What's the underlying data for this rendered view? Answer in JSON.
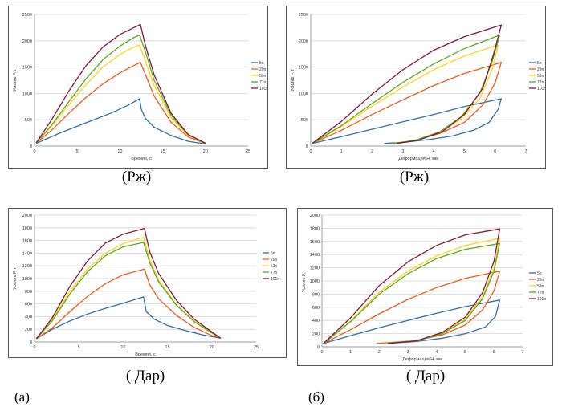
{
  "captions": [
    "(Рж)",
    "(Рж)",
    "( Дар)",
    "( Дар)"
  ],
  "panel_labels": [
    "(а)",
    "(б)"
  ],
  "colors": {
    "5n": "#2e6fa8",
    "29n": "#f05a1a",
    "53n": "#ffd21a",
    "77n": "#5ea820",
    "101n": "#7b1a3a"
  },
  "chart_data": [
    {
      "type": "line",
      "xlabel": "Время t, с",
      "ylabel": "Усилие F, г",
      "xlim": [
        0,
        25
      ],
      "ylim": [
        0,
        2500
      ],
      "xticks": [
        0,
        5,
        10,
        15,
        20,
        25
      ],
      "yticks": [
        0,
        500,
        1000,
        1500,
        2000,
        2500
      ],
      "legend": [
        "5n",
        "29n",
        "53n",
        "77n",
        "101n"
      ],
      "series": [
        {
          "name": "5n",
          "x": [
            0.2,
            3,
            6,
            9,
            11,
            12.3,
            12.5,
            13,
            14,
            16,
            18,
            20
          ],
          "y": [
            50,
            250,
            440,
            630,
            780,
            900,
            700,
            520,
            360,
            200,
            90,
            40
          ]
        },
        {
          "name": "29n",
          "x": [
            0.2,
            2,
            4,
            6,
            8,
            10,
            11.5,
            12.4,
            13,
            14,
            16,
            18,
            20
          ],
          "y": [
            60,
            300,
            620,
            920,
            1180,
            1390,
            1520,
            1590,
            1350,
            950,
            450,
            170,
            50
          ]
        },
        {
          "name": "53n",
          "x": [
            0.2,
            2,
            4,
            6,
            8,
            10,
            11.5,
            12.3,
            13,
            14,
            16,
            18,
            20
          ],
          "y": [
            60,
            380,
            780,
            1160,
            1500,
            1740,
            1870,
            1920,
            1600,
            1150,
            540,
            200,
            55
          ]
        },
        {
          "name": "77n",
          "x": [
            0.2,
            2,
            4,
            6,
            8,
            10,
            11.5,
            12.3,
            13,
            14,
            16,
            18,
            20
          ],
          "y": [
            60,
            400,
            840,
            1270,
            1640,
            1900,
            2050,
            2110,
            1780,
            1250,
            580,
            210,
            55
          ]
        },
        {
          "name": "101n",
          "x": [
            0.2,
            2,
            4,
            6,
            8,
            10,
            11.5,
            12.4,
            13,
            14,
            16,
            18,
            20
          ],
          "y": [
            60,
            500,
            1040,
            1520,
            1880,
            2120,
            2240,
            2310,
            1900,
            1350,
            620,
            220,
            55
          ]
        }
      ]
    },
    {
      "type": "line",
      "xlabel": "Деформация H, мм",
      "ylabel": "Усилие F, г",
      "xlim": [
        0,
        7
      ],
      "ylim": [
        0,
        2500
      ],
      "xticks": [
        0,
        1,
        2,
        3,
        4,
        5,
        6,
        7
      ],
      "yticks": [
        0,
        500,
        1000,
        1500,
        2000,
        2500
      ],
      "legend": [
        "5n",
        "29n",
        "53n",
        "77n",
        "101n"
      ],
      "series": [
        {
          "name": "5n",
          "x": [
            0.05,
            1,
            2,
            3,
            4,
            5,
            6.2,
            6.1,
            5.8,
            5.3,
            4.6,
            3.8,
            3.0,
            2.4
          ],
          "y": [
            50,
            180,
            320,
            460,
            600,
            750,
            900,
            700,
            450,
            300,
            190,
            120,
            70,
            50
          ]
        },
        {
          "name": "29n",
          "x": [
            0.05,
            1,
            2,
            3,
            4,
            5,
            6.2,
            6.0,
            5.6,
            5.0,
            4.2,
            3.4,
            2.7
          ],
          "y": [
            50,
            300,
            600,
            880,
            1150,
            1380,
            1590,
            1200,
            780,
            450,
            240,
            110,
            50
          ]
        },
        {
          "name": "53n",
          "x": [
            0.05,
            1,
            2,
            3,
            4,
            5,
            6.1,
            5.9,
            5.5,
            4.9,
            4.2,
            3.4,
            2.7
          ],
          "y": [
            50,
            370,
            760,
            1120,
            1450,
            1710,
            1920,
            1450,
            900,
            520,
            260,
            110,
            50
          ]
        },
        {
          "name": "77n",
          "x": [
            0.05,
            1,
            2,
            3,
            4,
            5,
            6.15,
            5.9,
            5.5,
            4.9,
            4.2,
            3.4,
            2.7
          ],
          "y": [
            50,
            390,
            810,
            1210,
            1560,
            1850,
            2110,
            1600,
            1000,
            560,
            270,
            110,
            50
          ]
        },
        {
          "name": "101n",
          "x": [
            0.05,
            1,
            2,
            3,
            4,
            5,
            6.2,
            5.95,
            5.6,
            5.0,
            4.3,
            3.5,
            2.8
          ],
          "y": [
            50,
            470,
            990,
            1450,
            1820,
            2080,
            2300,
            1750,
            1100,
            600,
            280,
            110,
            50
          ]
        }
      ]
    },
    {
      "type": "line",
      "xlabel": "Время t, с",
      "ylabel": "Усилие F, г",
      "xlim": [
        0,
        25
      ],
      "ylim": [
        0,
        2000
      ],
      "xticks": [
        0,
        5,
        10,
        15,
        20,
        25
      ],
      "yticks": [
        0,
        200,
        400,
        600,
        800,
        1000,
        1200,
        1400,
        1600,
        1800,
        2000
      ],
      "legend": [
        "5n",
        "29n",
        "53n",
        "77n",
        "101n"
      ],
      "series": [
        {
          "name": "5n",
          "x": [
            0.2,
            2,
            4,
            6,
            8,
            10,
            12.3,
            12.6,
            13.5,
            15,
            17,
            19,
            21
          ],
          "y": [
            50,
            200,
            330,
            440,
            530,
            610,
            710,
            480,
            360,
            260,
            180,
            110,
            60
          ]
        },
        {
          "name": "29n",
          "x": [
            0.2,
            2,
            4,
            6,
            8,
            10,
            12.4,
            13,
            14,
            16,
            18,
            20,
            21
          ],
          "y": [
            50,
            220,
            480,
            720,
            920,
            1060,
            1150,
            900,
            680,
            420,
            230,
            100,
            60
          ]
        },
        {
          "name": "53n",
          "x": [
            0.2,
            2,
            4,
            6,
            8,
            10,
            12.3,
            13,
            14,
            16,
            18,
            20,
            21
          ],
          "y": [
            50,
            350,
            800,
            1150,
            1400,
            1550,
            1650,
            1300,
            980,
            590,
            330,
            150,
            60
          ]
        },
        {
          "name": "77n",
          "x": [
            0.2,
            2,
            4,
            6,
            8,
            10,
            12.3,
            13,
            14,
            16,
            18,
            20,
            21
          ],
          "y": [
            50,
            330,
            760,
            1110,
            1360,
            1500,
            1570,
            1250,
            950,
            580,
            320,
            140,
            60
          ]
        },
        {
          "name": "101n",
          "x": [
            0.2,
            2,
            4,
            6,
            8,
            10,
            12.4,
            13,
            14,
            16,
            18,
            20,
            21
          ],
          "y": [
            50,
            380,
            880,
            1280,
            1560,
            1700,
            1790,
            1420,
            1080,
            660,
            360,
            160,
            60
          ]
        }
      ]
    },
    {
      "type": "line",
      "xlabel": "Деформация H, мм",
      "ylabel": "Усилие F, г",
      "xlim": [
        0,
        7
      ],
      "ylim": [
        0,
        2000
      ],
      "xticks": [
        0,
        1,
        2,
        3,
        4,
        5,
        6,
        7
      ],
      "yticks": [
        0,
        200,
        400,
        600,
        800,
        1000,
        1200,
        1400,
        1600,
        1800,
        2000
      ],
      "legend": [
        "5n",
        "29n",
        "53n",
        "77n",
        "101n"
      ],
      "series": [
        {
          "name": "5n",
          "x": [
            0.05,
            1,
            2,
            3,
            4,
            5,
            6.2,
            6.05,
            5.7,
            5.0,
            4.2,
            3.3,
            2.3
          ],
          "y": [
            50,
            170,
            290,
            400,
            510,
            610,
            710,
            460,
            300,
            200,
            130,
            80,
            50
          ]
        },
        {
          "name": "29n",
          "x": [
            0.05,
            1,
            2,
            3,
            4,
            5,
            6.2,
            6.0,
            5.6,
            5.0,
            4.2,
            3.2,
            1.9
          ],
          "y": [
            50,
            260,
            500,
            720,
            900,
            1040,
            1150,
            850,
            560,
            330,
            180,
            90,
            50
          ]
        },
        {
          "name": "53n",
          "x": [
            0.05,
            1,
            2,
            3,
            4,
            5,
            6.2,
            6.0,
            5.6,
            5.0,
            4.2,
            3.3,
            2.3
          ],
          "y": [
            50,
            390,
            830,
            1150,
            1380,
            1540,
            1650,
            1200,
            760,
            420,
            210,
            90,
            50
          ]
        },
        {
          "name": "77n",
          "x": [
            0.05,
            1,
            2,
            3,
            4,
            5,
            6.2,
            6.0,
            5.6,
            5.0,
            4.2,
            3.3,
            2.3
          ],
          "y": [
            50,
            380,
            800,
            1110,
            1340,
            1480,
            1570,
            1150,
            730,
            400,
            200,
            90,
            50
          ]
        },
        {
          "name": "101n",
          "x": [
            0.05,
            1,
            2,
            3,
            4,
            5,
            6.2,
            6.0,
            5.6,
            5.0,
            4.2,
            3.3,
            2.3
          ],
          "y": [
            50,
            440,
            930,
            1290,
            1540,
            1700,
            1790,
            1300,
            820,
            450,
            220,
            90,
            50
          ]
        }
      ]
    }
  ]
}
